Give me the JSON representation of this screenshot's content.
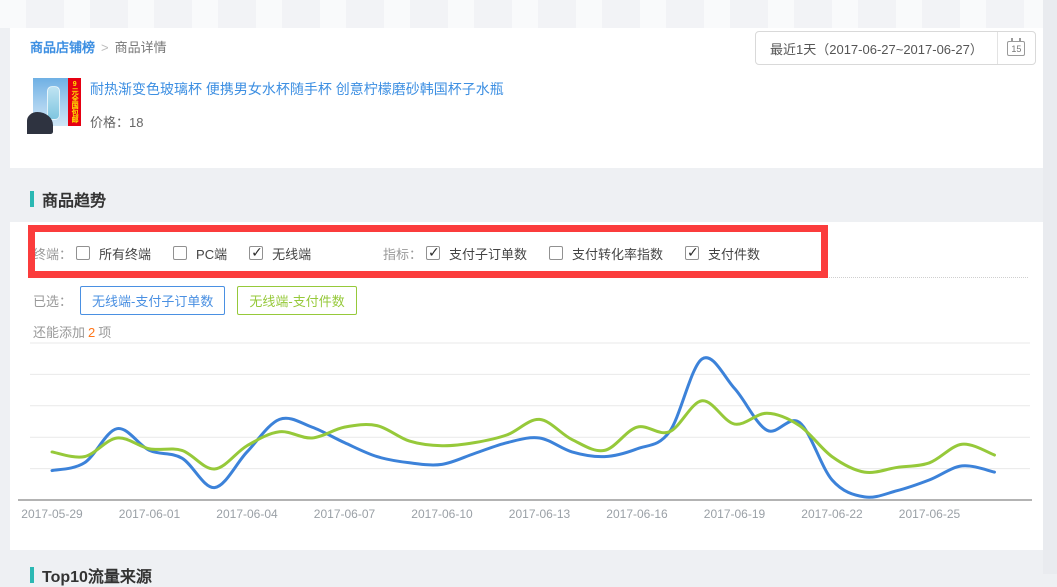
{
  "breadcrumb": {
    "root": "商品店铺榜",
    "separator": ">",
    "current": "商品详情"
  },
  "date_picker": {
    "label": "最近1天（2017-06-27~2017-06-27）",
    "calendar_day": "15"
  },
  "product": {
    "title": "耐热渐变色玻璃杯 便携男女水杯随手杯 创意柠檬磨砂韩国杯子水瓶",
    "price_label": "价格：",
    "price_value": "18",
    "thumb_badge": "9元全国包邮"
  },
  "trend_section": {
    "title": "商品趋势"
  },
  "filters": {
    "terminal": {
      "label": "终端：",
      "options": [
        {
          "label": "所有终端",
          "checked": false
        },
        {
          "label": "PC端",
          "checked": false
        },
        {
          "label": "无线端",
          "checked": true
        }
      ]
    },
    "metric": {
      "label": "指标：",
      "options": [
        {
          "label": "支付子订单数",
          "checked": true
        },
        {
          "label": "支付转化率指数",
          "checked": false
        },
        {
          "label": "支付件数",
          "checked": true
        }
      ]
    }
  },
  "selected": {
    "label": "已选：",
    "tags": [
      {
        "label": "无线端-支付子订单数",
        "color": "#4a90e2"
      },
      {
        "label": "无线端-支付件数",
        "color": "#96c93a"
      }
    ],
    "remaining_prefix": "还能添加",
    "remaining_count": "2",
    "remaining_suffix": "项"
  },
  "chart_data": {
    "type": "line",
    "title": "",
    "xlabel": "",
    "ylabel": "",
    "x_tick_labels": [
      "2017-05-29",
      "2017-06-01",
      "2017-06-04",
      "2017-06-07",
      "2017-06-10",
      "2017-06-13",
      "2017-06-16",
      "2017-06-19",
      "2017-06-22",
      "2017-06-25"
    ],
    "x": [
      "2017-05-29",
      "2017-05-30",
      "2017-05-31",
      "2017-06-01",
      "2017-06-02",
      "2017-06-03",
      "2017-06-04",
      "2017-06-05",
      "2017-06-06",
      "2017-06-07",
      "2017-06-08",
      "2017-06-09",
      "2017-06-10",
      "2017-06-11",
      "2017-06-12",
      "2017-06-13",
      "2017-06-14",
      "2017-06-15",
      "2017-06-16",
      "2017-06-17",
      "2017-06-18",
      "2017-06-19",
      "2017-06-20",
      "2017-06-21",
      "2017-06-22",
      "2017-06-23",
      "2017-06-24",
      "2017-06-25",
      "2017-06-26",
      "2017-06-27"
    ],
    "ylim": [
      0,
      100
    ],
    "y_axis_labels_visible": false,
    "grid": "horizontal",
    "legend_position": "none (tags above chart act as legend)",
    "series": [
      {
        "name": "无线端-支付子订单数",
        "color": "#3c82d9",
        "values": [
          19,
          24,
          46,
          32,
          27,
          8,
          31,
          52,
          47,
          37,
          28,
          24,
          23,
          30,
          37,
          40,
          31,
          28,
          33,
          44,
          91,
          72,
          45,
          50,
          13,
          2,
          6,
          13,
          22,
          18
        ]
      },
      {
        "name": "无线端-支付件数",
        "color": "#96c93a",
        "values": [
          31,
          28,
          40,
          33,
          32,
          20,
          35,
          44,
          40,
          47,
          48,
          38,
          35,
          37,
          42,
          52,
          39,
          32,
          47,
          44,
          64,
          49,
          56,
          48,
          28,
          18,
          21,
          24,
          36,
          29
        ]
      }
    ]
  },
  "bottom_section": {
    "title": "Top10流量来源"
  },
  "colors": {
    "link_blue": "#3d8fe2",
    "teal_accent": "#2bb8b3",
    "orange_highlight": "#ff7519",
    "annotation_red": "#fb3c3c",
    "line_blue": "#3c82d9",
    "line_green": "#96c93a"
  }
}
